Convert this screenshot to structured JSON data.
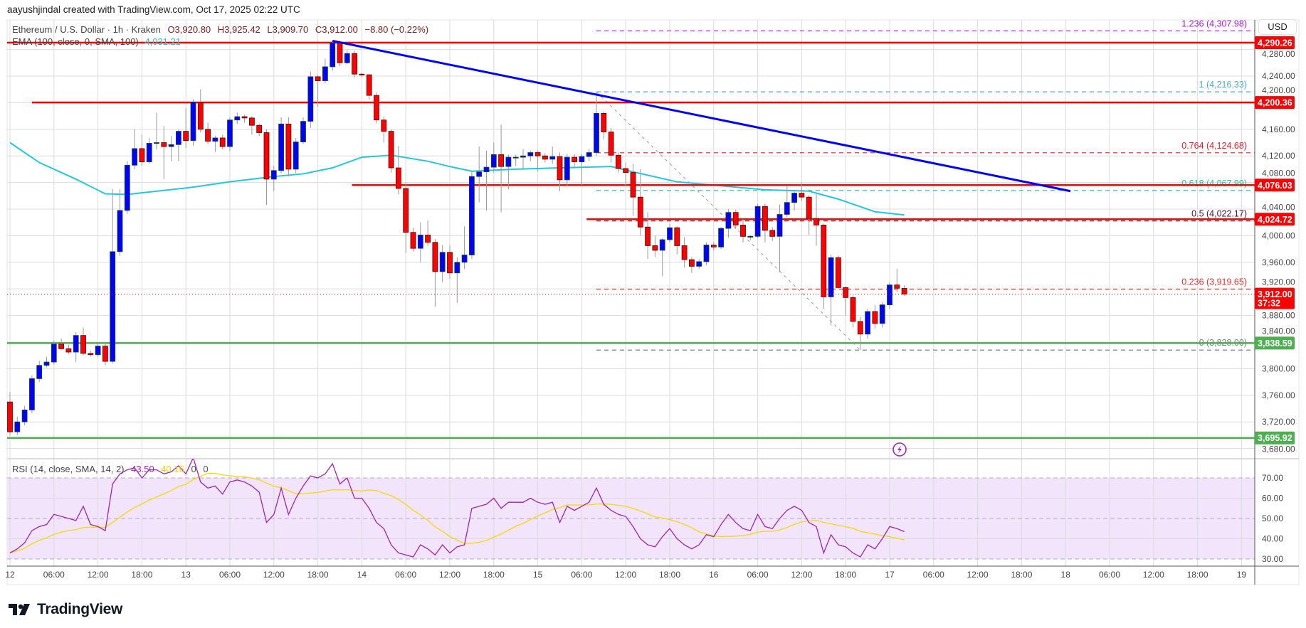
{
  "header": {
    "attribution": "aayushjindal created with TradingView.com, Oct 17, 2025 02:22 UTC"
  },
  "legend": {
    "symbol": "Ethereum / U.S. Dollar · 1h · Kraken",
    "open": "O3,920.80",
    "high": "H3,925.42",
    "low": "L3,909.70",
    "close": "C3,912.00",
    "change": "−8.80 (−0.22%)",
    "ema_label": "EMA (100, close, 0, SMA, 100)",
    "ema_value": "4,031.21"
  },
  "rsi_legend": {
    "label": "RSI (14, close, SMA, 14, 2)",
    "rsi_value": "43.50",
    "sma_value": "40.16",
    "v3": "0",
    "v4": "0"
  },
  "currency": "USD",
  "logo": {
    "text": "TradingView"
  },
  "colors": {
    "up": "#0000ff",
    "down": "#ff0000",
    "ema": "#26c6da",
    "rsi": "#9c27b0",
    "rsi_ma": "#f5d90a",
    "resistance": "#ff0000",
    "support": "#4caf50",
    "trendline": "#0000ff",
    "rsi_band": "#f1e4fb"
  },
  "chart_data": {
    "type": "candlestick",
    "title": "Ethereum / U.S. Dollar · 1h · Kraken",
    "interval": "1h",
    "first_candle_time": "2025-10-12 00:00",
    "price_axis": {
      "ylim": [
        3660,
        4320
      ],
      "ticks": [
        "4,280.00",
        "4,240.00",
        "4,200.00",
        "4,160.00",
        "4,120.00",
        "4,080.00",
        "4,040.00",
        "4,000.00",
        "3,960.00",
        "3,920.00",
        "3,880.00",
        "3,840.00",
        "3,800.00",
        "3,760.00",
        "3,720.00",
        "3,680.00"
      ],
      "tick_values": [
        4280,
        4240,
        4200,
        4160,
        4120,
        4080,
        4040,
        4000,
        3960,
        3920,
        3880,
        3840,
        3800,
        3760,
        3720,
        3680
      ]
    },
    "time_axis": [
      {
        "label": "12",
        "t": "2025-10-12 00:00"
      },
      {
        "label": "06:00",
        "t": "2025-10-12 06:00"
      },
      {
        "label": "12:00",
        "t": "2025-10-12 12:00"
      },
      {
        "label": "18:00",
        "t": "2025-10-12 18:00"
      },
      {
        "label": "13",
        "t": "2025-10-13 00:00"
      },
      {
        "label": "06:00",
        "t": "2025-10-13 06:00"
      },
      {
        "label": "12:00",
        "t": "2025-10-13 12:00"
      },
      {
        "label": "18:00",
        "t": "2025-10-13 18:00"
      },
      {
        "label": "14",
        "t": "2025-10-14 00:00"
      },
      {
        "label": "06:00",
        "t": "2025-10-14 06:00"
      },
      {
        "label": "12:00",
        "t": "2025-10-14 12:00"
      },
      {
        "label": "18:00",
        "t": "2025-10-14 18:00"
      },
      {
        "label": "15",
        "t": "2025-10-15 00:00"
      },
      {
        "label": "06:00",
        "t": "2025-10-15 06:00"
      },
      {
        "label": "12:00",
        "t": "2025-10-15 12:00"
      },
      {
        "label": "18:00",
        "t": "2025-10-15 18:00"
      },
      {
        "label": "16",
        "t": "2025-10-16 00:00"
      },
      {
        "label": "06:00",
        "t": "2025-10-16 06:00"
      },
      {
        "label": "12:00",
        "t": "2025-10-16 12:00"
      },
      {
        "label": "18:00",
        "t": "2025-10-16 18:00"
      },
      {
        "label": "17",
        "t": "2025-10-17 00:00"
      },
      {
        "label": "06:00",
        "t": "2025-10-17 06:00"
      },
      {
        "label": "12:00",
        "t": "2025-10-17 12:00"
      },
      {
        "label": "18:00",
        "t": "2025-10-17 18:00"
      },
      {
        "label": "18",
        "t": "2025-10-18 00:00"
      },
      {
        "label": "06:00",
        "t": "2025-10-18 06:00"
      },
      {
        "label": "12:00",
        "t": "2025-10-18 12:00"
      },
      {
        "label": "18:00",
        "t": "2025-10-18 18:00"
      },
      {
        "label": "19",
        "t": "2025-10-19 00:00"
      }
    ],
    "candles_ohlc": [
      [
        3750,
        3765,
        3700,
        3705
      ],
      [
        3705,
        3728,
        3700,
        3720
      ],
      [
        3720,
        3744,
        3715,
        3738
      ],
      [
        3738,
        3790,
        3733,
        3785
      ],
      [
        3785,
        3812,
        3780,
        3805
      ],
      [
        3805,
        3818,
        3802,
        3810
      ],
      [
        3810,
        3842,
        3806,
        3837
      ],
      [
        3837,
        3845,
        3828,
        3830
      ],
      [
        3830,
        3836,
        3822,
        3825
      ],
      [
        3825,
        3855,
        3810,
        3850
      ],
      [
        3850,
        3862,
        3820,
        3823
      ],
      [
        3823,
        3827,
        3818,
        3821
      ],
      [
        3821,
        3838,
        3818,
        3834
      ],
      [
        3834,
        3837,
        3805,
        3811
      ],
      [
        3811,
        4070,
        3808,
        3976
      ],
      [
        3976,
        4070,
        3970,
        4038
      ],
      [
        4038,
        4112,
        4033,
        4106
      ],
      [
        4106,
        4160,
        4100,
        4131
      ],
      [
        4131,
        4152,
        4105,
        4111
      ],
      [
        4111,
        4147,
        4108,
        4139
      ],
      [
        4139,
        4185,
        4130,
        4140
      ],
      [
        4140,
        4165,
        4085,
        4134
      ],
      [
        4134,
        4150,
        4112,
        4137
      ],
      [
        4137,
        4160,
        4112,
        4157
      ],
      [
        4157,
        4192,
        4132,
        4143
      ],
      [
        4143,
        4205,
        4135,
        4201
      ],
      [
        4201,
        4220,
        4155,
        4160
      ],
      [
        4160,
        4170,
        4138,
        4142
      ],
      [
        4142,
        4150,
        4126,
        4147
      ],
      [
        4147,
        4152,
        4130,
        4134
      ],
      [
        4134,
        4178,
        4127,
        4174
      ],
      [
        4174,
        4185,
        4168,
        4179
      ],
      [
        4179,
        4182,
        4170,
        4177
      ],
      [
        4177,
        4180,
        4152,
        4166
      ],
      [
        4166,
        4168,
        4150,
        4155
      ],
      [
        4155,
        4160,
        4046,
        4085
      ],
      [
        4085,
        4105,
        4067,
        4098
      ],
      [
        4098,
        4178,
        4094,
        4168
      ],
      [
        4168,
        4178,
        4089,
        4100
      ],
      [
        4100,
        4147,
        4094,
        4141
      ],
      [
        4141,
        4178,
        4138,
        4172
      ],
      [
        4172,
        4247,
        4162,
        4239
      ],
      [
        4239,
        4242,
        4194,
        4233
      ],
      [
        4233,
        4266,
        4229,
        4254
      ],
      [
        4254,
        4293,
        4248,
        4290
      ],
      [
        4290,
        4293,
        4255,
        4260
      ],
      [
        4260,
        4279,
        4258,
        4274
      ],
      [
        4274,
        4278,
        4238,
        4243
      ],
      [
        4243,
        4245,
        4238,
        4242
      ],
      [
        4242,
        4243,
        4205,
        4211
      ],
      [
        4211,
        4215,
        4169,
        4174
      ],
      [
        4174,
        4179,
        4140,
        4157
      ],
      [
        4157,
        4160,
        4095,
        4102
      ],
      [
        4102,
        4135,
        4062,
        4071
      ],
      [
        4071,
        4080,
        3974,
        4005
      ],
      [
        4005,
        4012,
        3976,
        3981
      ],
      [
        3981,
        4020,
        3960,
        4001
      ],
      [
        4001,
        4023,
        3985,
        3990
      ],
      [
        3990,
        3995,
        3893,
        3946
      ],
      [
        3946,
        3986,
        3930,
        3975
      ],
      [
        3975,
        3985,
        3935,
        3944
      ],
      [
        3944,
        3968,
        3899,
        3960
      ],
      [
        3960,
        4014,
        3950,
        3971
      ],
      [
        3971,
        4096,
        3965,
        4089
      ],
      [
        4089,
        4134,
        4050,
        4096
      ],
      [
        4096,
        4128,
        4038,
        4103
      ],
      [
        4103,
        4140,
        4095,
        4122
      ],
      [
        4122,
        4167,
        4035,
        4104
      ],
      [
        4104,
        4122,
        4070,
        4118
      ],
      [
        4118,
        4122,
        4105,
        4118
      ],
      [
        4118,
        4130,
        4100,
        4120
      ],
      [
        4120,
        4128,
        4112,
        4125
      ],
      [
        4125,
        4128,
        4097,
        4120
      ],
      [
        4120,
        4124,
        4110,
        4115
      ],
      [
        4115,
        4134,
        4108,
        4119
      ],
      [
        4119,
        4125,
        4067,
        4084
      ],
      [
        4084,
        4123,
        4075,
        4118
      ],
      [
        4118,
        4123,
        4101,
        4111
      ],
      [
        4111,
        4123,
        4076,
        4119
      ],
      [
        4119,
        4130,
        4112,
        4125
      ],
      [
        4125,
        4216.33,
        4120,
        4184
      ],
      [
        4184,
        4187,
        4145,
        4156
      ],
      [
        4156,
        4162,
        4110,
        4121
      ],
      [
        4121,
        4125,
        4095,
        4101
      ],
      [
        4101,
        4110,
        4075,
        4095
      ],
      [
        4095,
        4108,
        4030,
        4058
      ],
      [
        4058,
        4100,
        4000,
        4013
      ],
      [
        4013,
        4035,
        3965,
        3985
      ],
      [
        3985,
        4000,
        3968,
        3978
      ],
      [
        3978,
        3996,
        3939,
        3994
      ],
      [
        3994,
        4018,
        3990,
        4012
      ],
      [
        4012,
        4014,
        3972,
        3985
      ],
      [
        3985,
        3998,
        3952,
        3964
      ],
      [
        3964,
        3968,
        3944,
        3954
      ],
      [
        3954,
        3965,
        3950,
        3961
      ],
      [
        3961,
        3990,
        3956,
        3986
      ],
      [
        3986,
        3990,
        3978,
        3983
      ],
      [
        3983,
        4013,
        3980,
        4011
      ],
      [
        4011,
        4040,
        3997,
        4035
      ],
      [
        4035,
        4039,
        4010,
        4016
      ],
      [
        4016,
        4025,
        3990,
        3999
      ],
      [
        3999,
        4001,
        3993,
        3999
      ],
      [
        3999,
        4048,
        3996,
        4044
      ],
      [
        4044,
        4048,
        3990,
        4008
      ],
      [
        4008,
        4013,
        3992,
        3999
      ],
      [
        3999,
        4047,
        3945,
        4032
      ],
      [
        4032,
        4075,
        4028,
        4050
      ],
      [
        4050,
        4069,
        4038,
        4064
      ],
      [
        4064,
        4080,
        4052,
        4058
      ],
      [
        4058,
        4061,
        4001,
        4026
      ],
      [
        4026,
        4063,
        3985,
        4016
      ],
      [
        4016,
        4018,
        3890,
        3908
      ],
      [
        3908,
        3972,
        3865,
        3967
      ],
      [
        3967,
        3970,
        3920,
        3922
      ],
      [
        3922,
        3924,
        3880,
        3907
      ],
      [
        3907,
        3910,
        3862,
        3871
      ],
      [
        3871,
        3878,
        3828,
        3852
      ],
      [
        3852,
        3890,
        3845,
        3886
      ],
      [
        3886,
        3896,
        3860,
        3868
      ],
      [
        3868,
        3900,
        3862,
        3896
      ],
      [
        3896,
        3930,
        3890,
        3926
      ],
      [
        3926,
        3950,
        3915,
        3921
      ],
      [
        3920.8,
        3925.42,
        3909.7,
        3912.0
      ]
    ],
    "ema_100": [
      [
        "2025-10-12 00:00",
        4140
      ],
      [
        "2025-10-12 04:00",
        4110
      ],
      [
        "2025-10-12 09:00",
        4085
      ],
      [
        "2025-10-12 13:00",
        4063
      ],
      [
        "2025-10-12 16:00",
        4062
      ],
      [
        "2025-10-13 01:00",
        4073
      ],
      [
        "2025-10-13 06:00",
        4081
      ],
      [
        "2025-10-13 12:00",
        4089
      ],
      [
        "2025-10-13 16:00",
        4093
      ],
      [
        "2025-10-13 20:00",
        4102
      ],
      [
        "2025-10-14 00:00",
        4118
      ],
      [
        "2025-10-14 04:00",
        4121
      ],
      [
        "2025-10-14 09:00",
        4112
      ],
      [
        "2025-10-14 12:00",
        4104
      ],
      [
        "2025-10-14 15:00",
        4097
      ],
      [
        "2025-10-14 21:00",
        4100
      ],
      [
        "2025-10-15 03:00",
        4102
      ],
      [
        "2025-10-15 10:00",
        4104
      ],
      [
        "2025-10-15 13:00",
        4096
      ],
      [
        "2025-10-15 19:00",
        4081
      ],
      [
        "2025-10-16 01:00",
        4075
      ],
      [
        "2025-10-16 07:00",
        4069
      ],
      [
        "2025-10-16 13:00",
        4067
      ],
      [
        "2025-10-16 17:00",
        4055
      ],
      [
        "2025-10-16 22:00",
        4036
      ],
      [
        "2025-10-17 02:00",
        4031.21
      ]
    ],
    "rsi_14": [
      33,
      35,
      38,
      44,
      46,
      47,
      52,
      51,
      50,
      49,
      56,
      47,
      46,
      44,
      67,
      72,
      74,
      75,
      70,
      74,
      74,
      72,
      73,
      76,
      72,
      80,
      68,
      65,
      66,
      62,
      68,
      69,
      68,
      66,
      63,
      48,
      52,
      65,
      52,
      60,
      66,
      71,
      70,
      72,
      77,
      67,
      70,
      60,
      60,
      55,
      48,
      45,
      37,
      33,
      32,
      31,
      37,
      35,
      32,
      37,
      33,
      36,
      37,
      55,
      56,
      57,
      60,
      55,
      58,
      58,
      58,
      60,
      58,
      57,
      58,
      48,
      56,
      54,
      56,
      58,
      65,
      57,
      54,
      52,
      51,
      46,
      40,
      37,
      36,
      41,
      45,
      40,
      37,
      35,
      37,
      42,
      41,
      47,
      52,
      48,
      45,
      44,
      52,
      46,
      45,
      50,
      54,
      56,
      54,
      48,
      46,
      33,
      42,
      37,
      36,
      33,
      31,
      37,
      35,
      40,
      46,
      45,
      43.5
    ],
    "rsi_axis": {
      "ylim": [
        25,
        80
      ],
      "ticks": [
        "70.00",
        "60.00",
        "50.00",
        "40.00",
        "30.00"
      ],
      "tick_values": [
        70,
        60,
        50,
        40,
        30
      ],
      "band": [
        30,
        70
      ]
    },
    "horizontal_levels": [
      {
        "price": 4290.26,
        "label": "4,290.26",
        "kind": "resistance",
        "from": "2025-10-11 23:00"
      },
      {
        "price": 4200.36,
        "label": "4,200.36",
        "kind": "resistance",
        "from": "2025-10-12 03:00"
      },
      {
        "price": 4076.03,
        "label": "4,076.03",
        "kind": "resistance",
        "from": "2025-10-13 22:40"
      },
      {
        "price": 4024.72,
        "label": "4,024.72",
        "kind": "resistance",
        "from": "2025-10-15 06:40"
      },
      {
        "price": 3838.59,
        "label": "3,838.59",
        "kind": "support",
        "from": "2025-10-11 23:00"
      },
      {
        "price": 3695.92,
        "label": "3,695.92",
        "kind": "support",
        "from": "2025-10-11 23:00"
      }
    ],
    "trendline": {
      "from": [
        "2025-10-13 20:00",
        4293
      ],
      "to": [
        "2025-10-18 00:40",
        4067
      ]
    },
    "last_price": {
      "price": 3912.0,
      "label": "3,912.00",
      "countdown": "37:32"
    },
    "fibonacci": {
      "from": [
        "2025-10-15 08:00",
        4216.33
      ],
      "to": [
        "2025-10-16 20:00",
        3828.0
      ],
      "levels": [
        {
          "ratio": "1.236",
          "price": 4307.98,
          "label": "1.236 (4,307.98)",
          "color": "#a020d8"
        },
        {
          "ratio": "1",
          "price": 4216.33,
          "label": "1 (4,216.33)",
          "color": "#4aa8dc"
        },
        {
          "ratio": "0.764",
          "price": 4124.68,
          "label": "0.764 (4,124.68)",
          "color": "#e0202c"
        },
        {
          "ratio": "0.618",
          "price": 4067.99,
          "label": "0.618 (4,067.99)",
          "color": "#1fc48e"
        },
        {
          "ratio": "0.5",
          "price": 4022.17,
          "label": "0.5 (4,022.17)",
          "color": "#4a1030"
        },
        {
          "ratio": "0.236",
          "price": 3919.65,
          "label": "0.236 (3,919.65)",
          "color": "#e03030"
        },
        {
          "ratio": "0",
          "price": 3828.0,
          "label": "0 (3,828.00)",
          "color": "#808080"
        }
      ]
    }
  }
}
